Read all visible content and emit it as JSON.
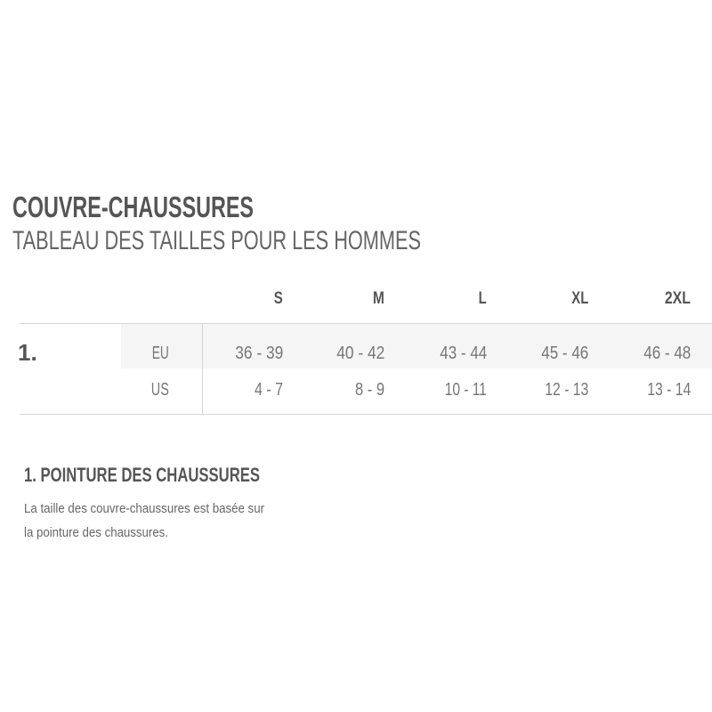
{
  "header": {
    "title": "COUVRE-CHAUSSURES",
    "subtitle": "TABLEAU DES TAILLES POUR LES HOMMES"
  },
  "table": {
    "sizes": [
      "S",
      "M",
      "L",
      "XL",
      "2XL"
    ],
    "row_number": "1.",
    "rows": [
      {
        "label": "EU",
        "values": [
          "36 - 39",
          "40 - 42",
          "43 - 44",
          "45 - 46",
          "46 - 48"
        ]
      },
      {
        "label": "US",
        "values": [
          "4 - 7",
          "8 - 9",
          "10 - 11",
          "12 - 13",
          "13 - 14"
        ]
      }
    ]
  },
  "note": {
    "heading": "1. POINTURE DES CHAUSSURES",
    "lines": [
      "La taille des couvre-chaussures est basée sur",
      "la pointure des chaussures."
    ]
  },
  "colors": {
    "text": "#555555",
    "row_highlight": "#f5f5f5",
    "rule": "#d6d6d6"
  }
}
